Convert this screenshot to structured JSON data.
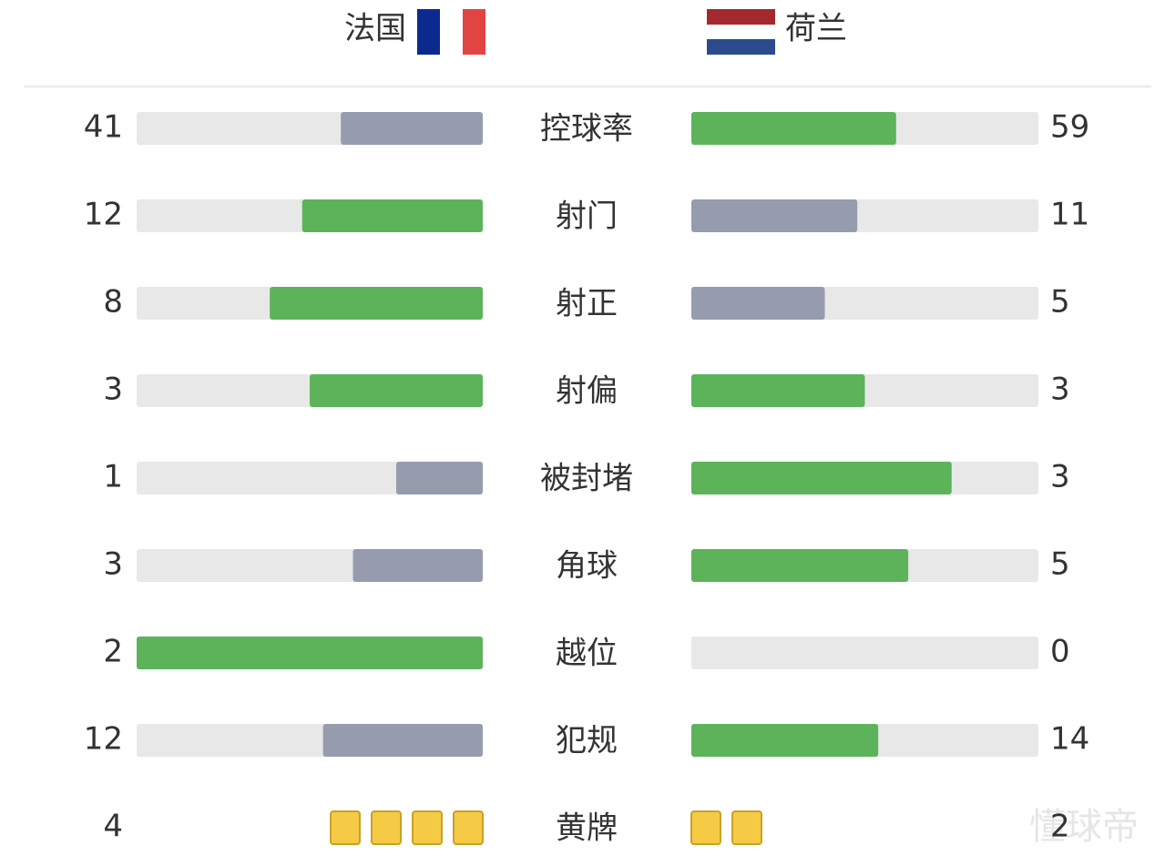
{
  "teams": {
    "home": "法国",
    "away": "荷兰"
  },
  "stats": [
    {
      "label": "控球率",
      "home": 41,
      "away": 59
    },
    {
      "label": "射门",
      "home": 12,
      "away": 11
    },
    {
      "label": "射正",
      "home": 8,
      "away": 5
    },
    {
      "label": "射偏",
      "home": 3,
      "away": 3
    },
    {
      "label": "被封堵",
      "home": 1,
      "away": 3
    },
    {
      "label": "角球",
      "home": 3,
      "away": 5
    },
    {
      "label": "越位",
      "home": 2,
      "away": 0
    },
    {
      "label": "犯规",
      "home": 12,
      "away": 14
    },
    {
      "label": "黄牌",
      "home": 4,
      "away": 2,
      "display": "cards"
    }
  ],
  "watermark": "懂球帝"
}
